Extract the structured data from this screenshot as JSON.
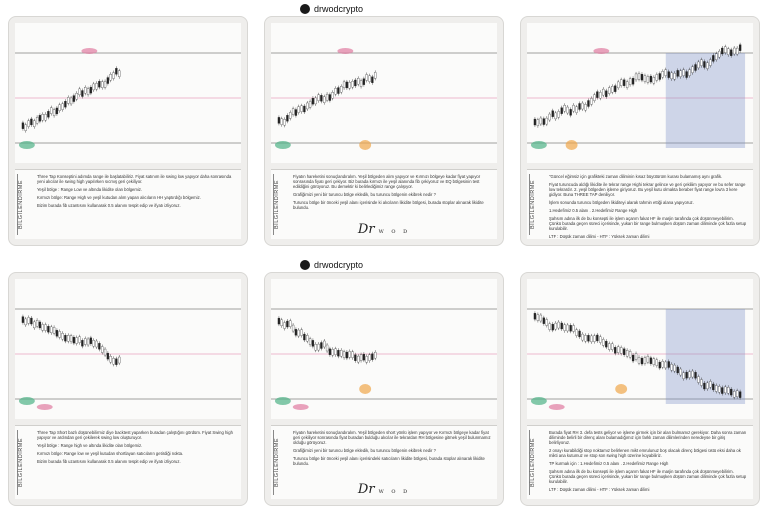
{
  "handle": "drwodcrypto",
  "brand": {
    "main": "Dr",
    "sub": "W O D"
  },
  "side_label": "BİLGİLENDİRME",
  "cards": [
    {
      "lines": [
        "Three Tap Konseptini adımda range ile başlatabiliriz. Fiyat satınım ile swing low yapıyor daha sonrasında yeni alıcılar ile swing high yapılırken sıcmış geri çekiliyor.",
        "Yeşil bölge : Range Low ve altında likidite olan bölgemiz.",
        "Kırmızı bölge: Range High ve yeşil kutudan alım yapan alıcıların HH yaptırdığı bölgemiz.",
        "Bizim burada fib uzantısını kullanarak 0.5 alanını tespit edip ve ifyatı izliyoruz."
      ]
    },
    {
      "lines": [
        "Fiyatın hareketini sonuçlandıralım. Yeşil bölgeden alım yapıyor ve Kırmızı bölgeye kadar fiyat yapıyor sonrasında fiyatı geri çekiyor. Biz burada kırmızı ile yeşil alanında fib çekiyoruz ve EQ bölgesinin test edildiğini görüyoruz. Bu demektir ki belirlediğimiz range çalışıyor.",
        "Grafiğimizi yeni bir turuncu bölge ekledik, bu turuncu bölgenin ekibrek nedir ?",
        "Turuncu bölge bir önceki yeşil alanı içerisinde ki alıcıların likidite bölgesi, burada stoplar alınarak likidite bulundu."
      ]
    },
    {
      "lines": [
        "\"Güncel eğimsiz için grafikteki zaman diliminin kısaz büyütürüm kurası bulamamış aynı grafik.",
        "Fiyat turuncuda aldığı likidite ile tekrar range Highi tekrar gelince ve geri çekiliim yapıyor ve bu sefer range low tekrardır. 2. yeşil bölgeden işleme giriyoruz. Bu yeşil kutu olmakta beraber fiyat range low'a 3 kere gidiyor. Buna THREE TAP deniliyor.",
        "İşlem sonunda turuncu bölgeden likiditeyi alarak tahmin ettiği alana yapıyoruz.",
        "1.Hedefimiz 0.5 alanı . 2.Hedefimiz Range High",
        "Şahsım adına ilk de bu konsepti ile işlem açarım fakat HF ile marjin tarafında çok düşünmeyebilirim. Çünkü burada geçen süreci içerisinde, yukarı bir range bulmuşken düşüm zaman diliminde çok fazla setup kurulabilir.",
        "LTF : Düşük zaman dilimi - HTF : Yüksek zaman dilimi"
      ]
    },
    {
      "lines": [
        "Three Tap Short bazlı düşünebilirmiz diye backtest yaparken buradan çalıştığını gördüm. Fiyat Swing high yapıyor ve ardından geri çekilerek swing low oluşturuyor.",
        "Yeşil bölge : Range high ve altında likidite olan bölgemiz.",
        "Kırmızı bölge: Range low ve yeşil kutudan shortlayan satıcıların getirdiği nokta.",
        "Bizim burada fib uzantısını kullanarak 0.5 alanını tespit edip ve ifyatı izliyoruz."
      ]
    },
    {
      "lines": [
        "Fiyatın hareketini sonuçlandıralım. Yeşil bölgeden short yönlü işlem yapıyor ve Kırmızı bölgeye kadar fiyat geri çekiliyor sonrasında fiyat buradan bulduğu alıcılar ile tekrardan RH bölgesine gitmek yeşil bulunmamız olduğu görüyoruz.",
        "Grafiğimizi yeni bir turuncu bölge ekledik, bu turuncu bölgenin ekibrek nedir ?",
        "Turuncu bölge bir önceki yeşil alanı içerisindeki satıcıların likidite bölgesi, burada stoplar alınarak likidite bulundu."
      ]
    },
    {
      "lines": [
        "Burada fiyat RH 3. defa tests geliyor ve işleme girmek için bir alan bulmamız gerekiyor. Daha sonra zaman diliminde belirli bir direnç alanı bulamadığımız için farklı zaman dilimlerinden neredeyse bir giriş belirliyoruz.",
        "2 onayı kurabildiği stop noktamız belirlenen mikt emrulunuz boş olacak direnç bölgesi üstü eksi daha ok mikti ana kutumuz ve stop son swing high üzerine koyabiliriz.",
        "TP kurmak için : 1.Hedefimiz 0.5 alanı . 2.Hedefimiz Range High",
        "Şahsım adına ilk de bu konsepti ile işlem açarım fakat HF ile marjin tarafında çok düşünmeyebilirim. Çünkü burada geçen süreci içerisinde, yukarı bir range bulmuşken düşüm zaman diliminde çok fazla setup kurulabilir.",
        "LTF : Düşük zaman dilimi - HTF : Yüksek zaman dilimi"
      ]
    }
  ],
  "colors": {
    "green": "#4fb286",
    "pink": "#e07aa0",
    "orange": "#f0a64a",
    "blue": "#7a8fc7"
  }
}
